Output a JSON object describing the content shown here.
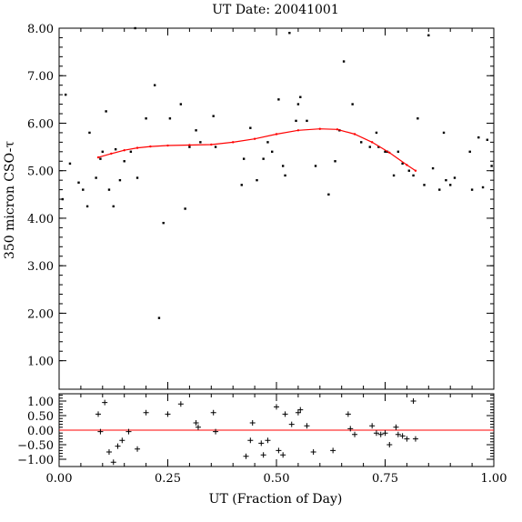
{
  "chart_data": {
    "type": "scatter",
    "title": "UT Date: 20041001",
    "xlabel": "UT (Fraction of Day)",
    "ylabel": "350 micron CSO-τ",
    "xlim": [
      0.0,
      1.0
    ],
    "main_panel": {
      "ylim": [
        0.4,
        8.0
      ],
      "yticks": [
        1.0,
        2.0,
        3.0,
        4.0,
        5.0,
        6.0,
        7.0,
        8.0
      ],
      "ytick_labels": [
        "1.00",
        "2.00",
        "3.00",
        "4.00",
        "5.00",
        "6.00",
        "7.00",
        "8.00"
      ],
      "series": [
        {
          "style": "dots",
          "color": "#000000",
          "x": [
            0.008,
            0.015,
            0.025,
            0.045,
            0.055,
            0.065,
            0.07,
            0.085,
            0.095,
            0.1,
            0.108,
            0.115,
            0.125,
            0.13,
            0.14,
            0.15,
            0.165,
            0.175,
            0.18,
            0.2,
            0.22,
            0.23,
            0.24,
            0.255,
            0.28,
            0.29,
            0.3,
            0.315,
            0.325,
            0.355,
            0.36,
            0.42,
            0.425,
            0.44,
            0.455,
            0.47,
            0.48,
            0.49,
            0.505,
            0.515,
            0.52,
            0.53,
            0.545,
            0.55,
            0.555,
            0.57,
            0.59,
            0.62,
            0.635,
            0.645,
            0.655,
            0.675,
            0.695,
            0.715,
            0.73,
            0.735,
            0.75,
            0.755,
            0.77,
            0.78,
            0.79,
            0.805,
            0.815,
            0.825,
            0.84,
            0.85,
            0.86,
            0.875,
            0.885,
            0.89,
            0.9,
            0.91,
            0.945,
            0.95,
            0.965,
            0.975,
            0.985,
            0.995
          ],
          "y": [
            4.4,
            6.6,
            5.15,
            4.75,
            4.6,
            4.25,
            5.8,
            4.85,
            5.25,
            5.4,
            6.25,
            4.6,
            4.25,
            5.45,
            4.8,
            5.2,
            5.4,
            8.0,
            4.85,
            6.1,
            6.8,
            1.9,
            3.9,
            6.1,
            6.4,
            4.2,
            5.5,
            5.85,
            5.6,
            6.15,
            5.5,
            4.7,
            5.25,
            5.9,
            4.8,
            5.25,
            5.6,
            5.4,
            6.5,
            5.1,
            4.9,
            7.9,
            6.05,
            6.4,
            6.55,
            6.05,
            5.1,
            4.5,
            5.2,
            5.85,
            7.3,
            6.4,
            5.6,
            5.5,
            5.8,
            5.5,
            5.4,
            5.4,
            4.9,
            5.4,
            5.15,
            5.0,
            4.9,
            6.1,
            4.7,
            7.85,
            5.05,
            4.6,
            5.8,
            4.8,
            4.7,
            4.85,
            5.4,
            4.6,
            5.7,
            4.65,
            5.65,
            5.1
          ]
        },
        {
          "style": "line",
          "color": "#ff0000",
          "x": [
            0.09,
            0.12,
            0.15,
            0.18,
            0.21,
            0.25,
            0.3,
            0.35,
            0.4,
            0.45,
            0.5,
            0.55,
            0.6,
            0.64,
            0.68,
            0.72,
            0.76,
            0.8,
            0.82
          ],
          "y": [
            5.28,
            5.36,
            5.43,
            5.48,
            5.51,
            5.53,
            5.54,
            5.55,
            5.6,
            5.67,
            5.77,
            5.85,
            5.88,
            5.87,
            5.77,
            5.6,
            5.38,
            5.12,
            5.0
          ]
        }
      ]
    },
    "residual_panel": {
      "ylim": [
        -1.25,
        1.25
      ],
      "yticks": [
        -1.0,
        -0.5,
        0.0,
        0.5,
        1.0
      ],
      "ytick_labels": [
        "−1.00",
        "−0.50",
        "0.00",
        "0.50",
        "1.00"
      ],
      "zero_line_color": "#ff0000",
      "series": [
        {
          "style": "plus",
          "color": "#000000",
          "x": [
            0.09,
            0.095,
            0.105,
            0.115,
            0.125,
            0.135,
            0.145,
            0.16,
            0.18,
            0.2,
            0.25,
            0.28,
            0.315,
            0.32,
            0.355,
            0.36,
            0.43,
            0.44,
            0.445,
            0.465,
            0.47,
            0.48,
            0.5,
            0.505,
            0.515,
            0.52,
            0.535,
            0.55,
            0.555,
            0.57,
            0.585,
            0.63,
            0.665,
            0.67,
            0.68,
            0.72,
            0.73,
            0.74,
            0.75,
            0.76,
            0.775,
            0.78,
            0.79,
            0.8,
            0.815,
            0.82
          ],
          "y": [
            0.55,
            -0.05,
            0.95,
            -0.75,
            -1.1,
            -0.55,
            -0.35,
            -0.05,
            -0.65,
            0.6,
            0.55,
            0.9,
            0.25,
            0.1,
            0.6,
            -0.05,
            -0.9,
            -0.35,
            0.25,
            -0.45,
            -0.85,
            -0.35,
            0.8,
            -0.7,
            -0.85,
            0.55,
            0.2,
            0.6,
            0.7,
            0.15,
            -0.75,
            -0.7,
            0.55,
            0.05,
            -0.15,
            0.15,
            -0.1,
            -0.15,
            -0.1,
            -0.5,
            0.1,
            -0.15,
            -0.2,
            -0.3,
            1.0,
            -0.3
          ]
        }
      ]
    },
    "xticks": [
      0.0,
      0.25,
      0.5,
      0.75,
      1.0
    ],
    "xtick_labels": [
      "0.00",
      "0.25",
      "0.50",
      "0.75",
      "1.00"
    ],
    "grid": false,
    "legend": "none"
  }
}
